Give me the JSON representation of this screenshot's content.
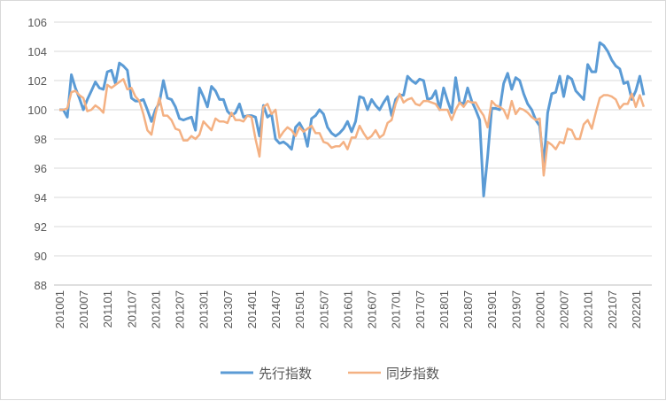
{
  "chart_data": {
    "type": "line",
    "title": "",
    "xlabel": "",
    "ylabel": "",
    "ylim": [
      88,
      106
    ],
    "yticks": [
      "88",
      "90",
      "92",
      "94",
      "96",
      "98",
      "100",
      "102",
      "104",
      "106"
    ],
    "xtick_labels": [
      "201001",
      "201007",
      "201101",
      "201107",
      "201201",
      "201207",
      "201301",
      "201307",
      "201401",
      "201407",
      "201501",
      "201507",
      "201601",
      "201607",
      "201701",
      "201707",
      "201801",
      "201807",
      "201901",
      "201907",
      "202001",
      "202007",
      "202101",
      "202107",
      "202201"
    ],
    "x_start": "201001",
    "x_end": "202203",
    "x_frequency": "monthly",
    "grid": true,
    "legend_position": "bottom",
    "series": [
      {
        "name": "先行指数",
        "color": "#5b9bd5",
        "values": [
          100.0,
          100.0,
          99.5,
          102.4,
          101.5,
          100.8,
          100.0,
          100.7,
          101.3,
          101.9,
          101.5,
          101.4,
          102.6,
          102.7,
          101.8,
          103.2,
          103.0,
          102.7,
          100.8,
          100.6,
          100.6,
          100.7,
          100.0,
          99.2,
          100.0,
          100.5,
          102.0,
          100.8,
          100.7,
          100.2,
          99.4,
          99.3,
          99.4,
          99.5,
          98.6,
          101.5,
          100.9,
          100.2,
          101.6,
          101.3,
          100.7,
          100.7,
          99.9,
          99.6,
          99.8,
          100.4,
          99.5,
          99.6,
          99.6,
          99.5,
          98.2,
          100.3,
          99.5,
          99.7,
          98.0,
          97.7,
          97.8,
          97.6,
          97.3,
          98.8,
          99.1,
          98.6,
          97.5,
          99.4,
          99.6,
          100.0,
          99.7,
          98.8,
          98.4,
          98.2,
          98.4,
          98.7,
          99.2,
          98.5,
          99.2,
          100.9,
          100.8,
          100.0,
          100.7,
          100.3,
          100.0,
          100.5,
          100.9,
          99.6,
          100.7,
          101.0,
          101.0,
          102.3,
          102.0,
          101.8,
          102.1,
          102.0,
          100.7,
          100.8,
          101.3,
          100.0,
          101.5,
          100.6,
          99.8,
          102.2,
          100.5,
          100.4,
          101.5,
          100.6,
          100.0,
          99.3,
          94.1,
          96.8,
          100.1,
          100.1,
          100.0,
          101.8,
          102.5,
          101.4,
          102.2,
          102.0,
          101.1,
          100.4,
          100.0,
          99.3,
          98.9,
          96.2,
          99.8,
          101.1,
          101.2,
          102.3,
          100.9,
          102.3,
          102.1,
          101.3,
          101.0,
          100.7,
          103.1,
          102.6,
          102.6,
          104.6,
          104.4,
          104.0,
          103.4,
          103.0,
          102.8,
          101.8,
          101.9,
          100.7,
          101.3,
          102.3,
          101.0
        ]
      },
      {
        "name": "同步指数",
        "color": "#f4b183",
        "values": [
          100.0,
          100.0,
          100.1,
          101.2,
          101.3,
          101.0,
          100.8,
          99.9,
          100.0,
          100.3,
          100.1,
          99.8,
          101.7,
          101.5,
          101.7,
          101.9,
          102.1,
          101.4,
          101.5,
          100.9,
          100.6,
          99.7,
          98.6,
          98.3,
          99.7,
          100.8,
          99.6,
          99.6,
          99.3,
          98.7,
          98.6,
          97.9,
          97.9,
          98.2,
          98.0,
          98.3,
          99.2,
          98.9,
          98.6,
          99.4,
          99.2,
          99.2,
          99.1,
          99.8,
          99.3,
          99.3,
          99.2,
          99.6,
          99.5,
          98.0,
          96.8,
          100.2,
          100.4,
          99.7,
          100.0,
          98.1,
          98.5,
          98.8,
          98.6,
          98.2,
          98.8,
          98.5,
          98.7,
          98.9,
          98.4,
          98.4,
          97.8,
          97.7,
          97.4,
          97.5,
          97.5,
          97.8,
          97.3,
          98.1,
          98.1,
          98.9,
          98.4,
          98.0,
          98.2,
          98.6,
          98.1,
          98.3,
          99.1,
          99.3,
          100.4,
          101.1,
          100.5,
          100.7,
          100.8,
          100.4,
          100.3,
          100.6,
          100.6,
          100.5,
          100.4,
          100.0,
          100.0,
          100.0,
          99.3,
          100.0,
          100.5,
          100.2,
          100.6,
          100.5,
          100.5,
          100.0,
          99.6,
          98.8,
          100.6,
          100.3,
          100.2,
          100.0,
          99.4,
          100.6,
          99.7,
          100.1,
          100.0,
          99.8,
          99.5,
          99.3,
          99.4,
          95.5,
          97.8,
          97.6,
          97.3,
          97.8,
          97.7,
          98.7,
          98.6,
          98.0,
          98.0,
          99.0,
          99.3,
          98.7,
          99.8,
          100.8,
          101.0,
          101.0,
          100.9,
          100.7,
          100.1,
          100.4,
          100.4,
          101.1,
          100.2,
          101.0,
          100.2
        ]
      }
    ]
  }
}
